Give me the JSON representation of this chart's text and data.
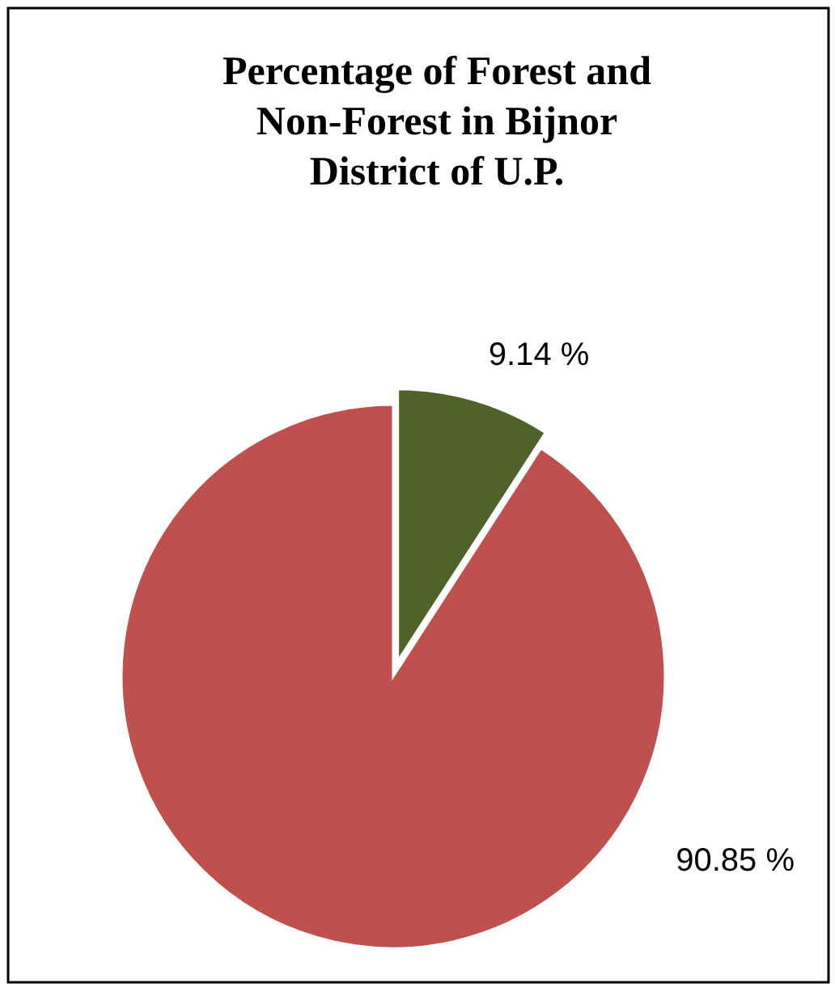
{
  "chart_data": {
    "type": "pie",
    "title": "Percentage of Forest and Non-Forest in Bijnor District of U.P.",
    "categories": [
      null,
      null
    ],
    "values": [
      9.14,
      90.85
    ],
    "colors": [
      "#4f6228",
      "#c0504d"
    ],
    "value_labels": [
      "9.14 %",
      "90.85 %"
    ]
  }
}
